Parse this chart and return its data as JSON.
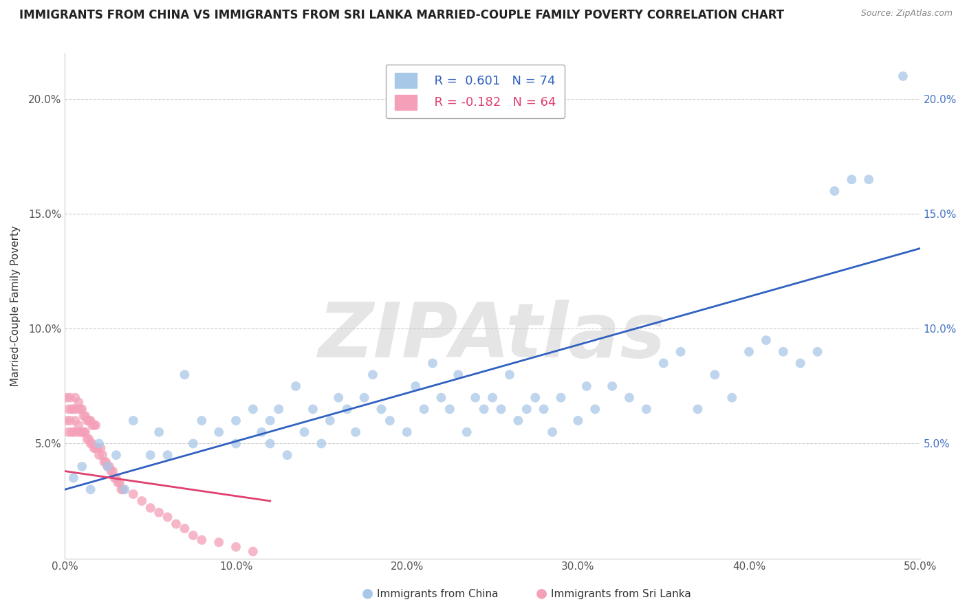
{
  "title": "IMMIGRANTS FROM CHINA VS IMMIGRANTS FROM SRI LANKA MARRIED-COUPLE FAMILY POVERTY CORRELATION CHART",
  "source": "Source: ZipAtlas.com",
  "ylabel": "Married-Couple Family Poverty",
  "xlim": [
    0.0,
    0.5
  ],
  "ylim": [
    0.0,
    0.22
  ],
  "xticks": [
    0.0,
    0.1,
    0.2,
    0.3,
    0.4,
    0.5
  ],
  "xticklabels": [
    "0.0%",
    "10.0%",
    "20.0%",
    "30.0%",
    "40.0%",
    "50.0%"
  ],
  "yticks": [
    0.0,
    0.05,
    0.1,
    0.15,
    0.2
  ],
  "yticklabels": [
    "",
    "5.0%",
    "10.0%",
    "15.0%",
    "20.0%"
  ],
  "china_color": "#a8c8e8",
  "srilanka_color": "#f4a0b8",
  "china_line_color": "#3060c0",
  "srilanka_line_color": "#e04070",
  "R_china": 0.601,
  "N_china": 74,
  "R_srilanka": -0.182,
  "N_srilanka": 64,
  "legend_label_china": "Immigrants from China",
  "legend_label_srilanka": "Immigrants from Sri Lanka",
  "watermark": "ZIPAtlas",
  "china_x": [
    0.005,
    0.01,
    0.015,
    0.02,
    0.025,
    0.03,
    0.035,
    0.04,
    0.05,
    0.055,
    0.06,
    0.07,
    0.075,
    0.08,
    0.09,
    0.1,
    0.1,
    0.11,
    0.115,
    0.12,
    0.12,
    0.125,
    0.13,
    0.135,
    0.14,
    0.145,
    0.15,
    0.155,
    0.16,
    0.165,
    0.17,
    0.175,
    0.18,
    0.185,
    0.19,
    0.2,
    0.205,
    0.21,
    0.215,
    0.22,
    0.225,
    0.23,
    0.235,
    0.24,
    0.245,
    0.25,
    0.255,
    0.26,
    0.265,
    0.27,
    0.275,
    0.28,
    0.285,
    0.29,
    0.3,
    0.305,
    0.31,
    0.32,
    0.33,
    0.34,
    0.35,
    0.36,
    0.37,
    0.38,
    0.39,
    0.4,
    0.41,
    0.42,
    0.43,
    0.44,
    0.45,
    0.46,
    0.47,
    0.49
  ],
  "china_y": [
    0.035,
    0.04,
    0.03,
    0.05,
    0.04,
    0.045,
    0.03,
    0.06,
    0.045,
    0.055,
    0.045,
    0.08,
    0.05,
    0.06,
    0.055,
    0.05,
    0.06,
    0.065,
    0.055,
    0.06,
    0.05,
    0.065,
    0.045,
    0.075,
    0.055,
    0.065,
    0.05,
    0.06,
    0.07,
    0.065,
    0.055,
    0.07,
    0.08,
    0.065,
    0.06,
    0.055,
    0.075,
    0.065,
    0.085,
    0.07,
    0.065,
    0.08,
    0.055,
    0.07,
    0.065,
    0.07,
    0.065,
    0.08,
    0.06,
    0.065,
    0.07,
    0.065,
    0.055,
    0.07,
    0.06,
    0.075,
    0.065,
    0.075,
    0.07,
    0.065,
    0.085,
    0.09,
    0.065,
    0.08,
    0.07,
    0.09,
    0.095,
    0.09,
    0.085,
    0.09,
    0.16,
    0.165,
    0.165,
    0.21
  ],
  "srilanka_x": [
    0.001,
    0.001,
    0.002,
    0.002,
    0.003,
    0.003,
    0.004,
    0.004,
    0.005,
    0.005,
    0.006,
    0.006,
    0.007,
    0.007,
    0.008,
    0.008,
    0.009,
    0.009,
    0.01,
    0.01,
    0.011,
    0.011,
    0.012,
    0.012,
    0.013,
    0.013,
    0.014,
    0.014,
    0.015,
    0.015,
    0.016,
    0.016,
    0.017,
    0.017,
    0.018,
    0.018,
    0.019,
    0.02,
    0.021,
    0.022,
    0.023,
    0.024,
    0.025,
    0.026,
    0.027,
    0.028,
    0.029,
    0.03,
    0.031,
    0.032,
    0.033,
    0.034,
    0.04,
    0.045,
    0.05,
    0.055,
    0.06,
    0.065,
    0.07,
    0.075,
    0.08,
    0.09,
    0.1,
    0.11
  ],
  "srilanka_y": [
    0.06,
    0.07,
    0.055,
    0.065,
    0.06,
    0.07,
    0.055,
    0.065,
    0.055,
    0.065,
    0.06,
    0.07,
    0.055,
    0.065,
    0.058,
    0.068,
    0.055,
    0.065,
    0.055,
    0.065,
    0.055,
    0.062,
    0.055,
    0.062,
    0.052,
    0.06,
    0.052,
    0.06,
    0.05,
    0.06,
    0.05,
    0.058,
    0.048,
    0.058,
    0.048,
    0.058,
    0.048,
    0.045,
    0.048,
    0.045,
    0.042,
    0.042,
    0.04,
    0.04,
    0.038,
    0.038,
    0.035,
    0.035,
    0.033,
    0.033,
    0.03,
    0.03,
    0.028,
    0.025,
    0.022,
    0.02,
    0.018,
    0.015,
    0.013,
    0.01,
    0.008,
    0.007,
    0.005,
    0.003
  ],
  "china_trend_x": [
    0.0,
    0.5
  ],
  "china_trend_y": [
    0.03,
    0.135
  ],
  "srilanka_trend_x": [
    0.0,
    0.12
  ],
  "srilanka_trend_y": [
    0.038,
    0.025
  ]
}
